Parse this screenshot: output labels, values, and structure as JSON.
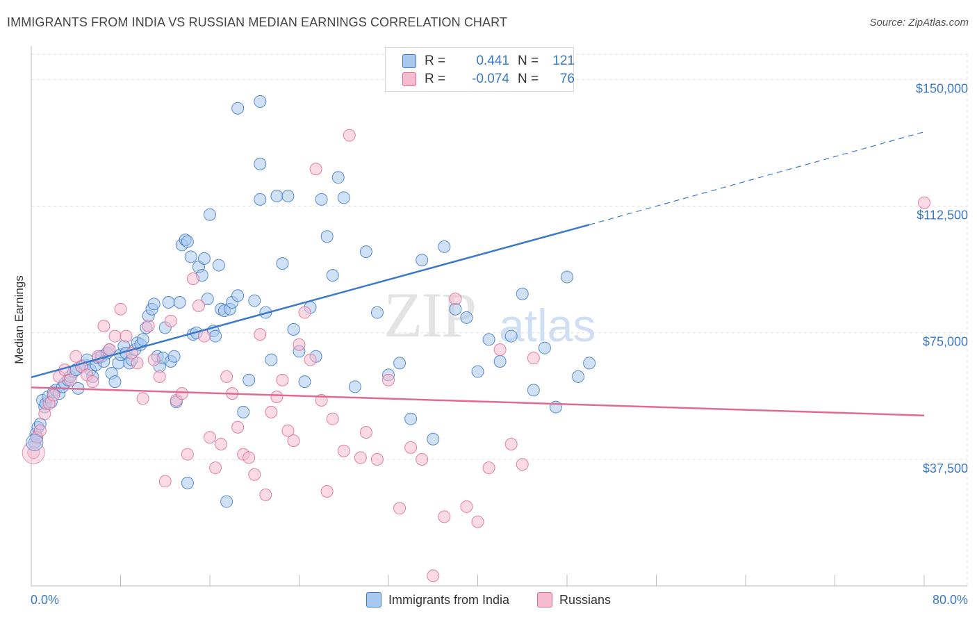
{
  "header": {
    "title": "IMMIGRANTS FROM INDIA VS RUSSIAN MEDIAN EARNINGS CORRELATION CHART",
    "source": "Source: ZipAtlas.com"
  },
  "legend": {
    "india": {
      "r_label": "R =",
      "r_value": "0.441",
      "n_label": "N =",
      "n_value": "121"
    },
    "russians": {
      "r_label": "R =",
      "r_value": "-0.074",
      "n_label": "N =",
      "n_value": "76"
    }
  },
  "bottom_legend": {
    "india": "Immigrants from India",
    "russians": "Russians"
  },
  "watermark": {
    "zip": "ZIP",
    "atlas": "atlas"
  },
  "colors": {
    "india": "#3a78c9",
    "india_fill": "#a9c8ee",
    "russians": "#e06a94",
    "russians_fill": "#f5bcd0",
    "tick": "#3a78c9",
    "grid": "#dddddd"
  },
  "chart_data": {
    "type": "scatter",
    "title": "IMMIGRANTS FROM INDIA VS RUSSIAN MEDIAN EARNINGS CORRELATION CHART",
    "xlabel": "",
    "ylabel": "Median Earnings",
    "xlim": [
      0,
      80
    ],
    "ylim": [
      0,
      157500
    ],
    "x_tick_labels": [
      "0.0%",
      "80.0%"
    ],
    "y_ticks": [
      37500,
      75000,
      112500,
      150000
    ],
    "y_tick_labels": [
      "$37,500",
      "$75,000",
      "$112,500",
      "$150,000"
    ],
    "grid": true,
    "legend_position": "top-center",
    "series": [
      {
        "name": "Immigrants from India",
        "color": "#3a78c9",
        "trend": {
          "x": [
            0,
            50
          ],
          "y": [
            61800,
            107000
          ],
          "dashed_extension_to": [
            80,
            134500
          ]
        },
        "points": [
          [
            0.3,
            42500
          ],
          [
            0.4,
            45000
          ],
          [
            0.5,
            44000
          ],
          [
            0.6,
            47000
          ],
          [
            0.8,
            48000
          ],
          [
            1.0,
            55000
          ],
          [
            1.2,
            53000
          ],
          [
            1.3,
            54000
          ],
          [
            1.5,
            56000
          ],
          [
            1.8,
            54500
          ],
          [
            2.0,
            57500
          ],
          [
            2.2,
            58000
          ],
          [
            2.5,
            57000
          ],
          [
            2.8,
            59000
          ],
          [
            3.0,
            60000
          ],
          [
            3.3,
            61000
          ],
          [
            3.5,
            62000
          ],
          [
            3.8,
            63500
          ],
          [
            4.0,
            64000
          ],
          [
            4.2,
            58500
          ],
          [
            4.5,
            65000
          ],
          [
            4.8,
            65500
          ],
          [
            5.0,
            67000
          ],
          [
            5.3,
            64000
          ],
          [
            5.5,
            62000
          ],
          [
            5.8,
            65500
          ],
          [
            6.0,
            67500
          ],
          [
            6.3,
            68000
          ],
          [
            6.5,
            66500
          ],
          [
            6.8,
            69000
          ],
          [
            7.0,
            70000
          ],
          [
            7.2,
            63000
          ],
          [
            7.5,
            60500
          ],
          [
            7.8,
            66000
          ],
          [
            8.0,
            68500
          ],
          [
            8.3,
            71000
          ],
          [
            8.5,
            69000
          ],
          [
            8.8,
            66000
          ],
          [
            9.0,
            67000
          ],
          [
            9.3,
            70000
          ],
          [
            9.5,
            72000
          ],
          [
            9.8,
            71500
          ],
          [
            10.0,
            73000
          ],
          [
            10.3,
            76500
          ],
          [
            10.5,
            80000
          ],
          [
            10.8,
            82000
          ],
          [
            11.0,
            83500
          ],
          [
            11.3,
            68000
          ],
          [
            11.5,
            65000
          ],
          [
            11.8,
            67500
          ],
          [
            12.0,
            76500
          ],
          [
            12.3,
            84000
          ],
          [
            12.5,
            66500
          ],
          [
            12.8,
            68000
          ],
          [
            13.0,
            54500
          ],
          [
            13.3,
            84000
          ],
          [
            13.5,
            101000
          ],
          [
            13.8,
            102500
          ],
          [
            14.0,
            102000
          ],
          [
            14.3,
            97500
          ],
          [
            14.5,
            74500
          ],
          [
            14.8,
            75000
          ],
          [
            15.0,
            94500
          ],
          [
            15.3,
            92000
          ],
          [
            15.5,
            97000
          ],
          [
            15.8,
            85000
          ],
          [
            16.0,
            110000
          ],
          [
            16.3,
            75500
          ],
          [
            16.5,
            74000
          ],
          [
            16.8,
            95000
          ],
          [
            17.0,
            82000
          ],
          [
            17.3,
            81500
          ],
          [
            17.5,
            25000
          ],
          [
            17.8,
            82000
          ],
          [
            18.0,
            84000
          ],
          [
            18.5,
            86000
          ],
          [
            19.0,
            51500
          ],
          [
            19.5,
            61000
          ],
          [
            20.0,
            84500
          ],
          [
            20.5,
            114500
          ],
          [
            21.0,
            81000
          ],
          [
            21.5,
            67000
          ],
          [
            22.0,
            115500
          ],
          [
            22.5,
            95500
          ],
          [
            23.0,
            115500
          ],
          [
            23.5,
            76000
          ],
          [
            24.0,
            69500
          ],
          [
            24.5,
            60500
          ],
          [
            25.0,
            82500
          ],
          [
            25.5,
            68000
          ],
          [
            26.0,
            114500
          ],
          [
            26.5,
            103500
          ],
          [
            27.0,
            92000
          ],
          [
            27.5,
            121000
          ],
          [
            28.0,
            115000
          ],
          [
            29.0,
            59000
          ],
          [
            30.0,
            99000
          ],
          [
            31.0,
            81000
          ],
          [
            32.0,
            62500
          ],
          [
            33.0,
            66000
          ],
          [
            34.0,
            49500
          ],
          [
            35.0,
            96500
          ],
          [
            36.0,
            43500
          ],
          [
            37.0,
            100500
          ],
          [
            38.0,
            82000
          ],
          [
            39.0,
            79500
          ],
          [
            40.0,
            63500
          ],
          [
            41.0,
            73000
          ],
          [
            42.0,
            66500
          ],
          [
            43.0,
            74000
          ],
          [
            44.0,
            86500
          ],
          [
            45.0,
            58000
          ],
          [
            46.0,
            70500
          ],
          [
            47.0,
            53000
          ],
          [
            48.0,
            91500
          ],
          [
            49.0,
            62000
          ],
          [
            50.0,
            66000
          ],
          [
            14.0,
            30500
          ],
          [
            18.5,
            141500
          ],
          [
            20.5,
            143500
          ],
          [
            20.5,
            125000
          ]
        ]
      },
      {
        "name": "Russians",
        "color": "#e06a94",
        "trend": {
          "x": [
            0,
            80
          ],
          "y": [
            58800,
            50500
          ]
        },
        "points": [
          [
            0.2,
            39500
          ],
          [
            0.5,
            44000
          ],
          [
            0.8,
            46000
          ],
          [
            1.2,
            51000
          ],
          [
            1.6,
            54000
          ],
          [
            2.0,
            56500
          ],
          [
            2.5,
            62000
          ],
          [
            3.0,
            64000
          ],
          [
            3.5,
            61000
          ],
          [
            4.0,
            68000
          ],
          [
            4.5,
            65000
          ],
          [
            5.0,
            62500
          ],
          [
            5.5,
            60500
          ],
          [
            6.0,
            68000
          ],
          [
            6.5,
            77000
          ],
          [
            7.0,
            70000
          ],
          [
            7.5,
            74000
          ],
          [
            8.0,
            82000
          ],
          [
            8.5,
            74000
          ],
          [
            9.0,
            69000
          ],
          [
            9.5,
            66000
          ],
          [
            10.0,
            55500
          ],
          [
            10.5,
            77000
          ],
          [
            11.0,
            67000
          ],
          [
            11.5,
            62000
          ],
          [
            12.0,
            31000
          ],
          [
            12.5,
            78500
          ],
          [
            13.0,
            55000
          ],
          [
            13.5,
            57000
          ],
          [
            14.0,
            39000
          ],
          [
            14.5,
            91000
          ],
          [
            15.0,
            83000
          ],
          [
            15.5,
            74000
          ],
          [
            16.0,
            44000
          ],
          [
            16.5,
            35000
          ],
          [
            17.0,
            42000
          ],
          [
            17.5,
            62000
          ],
          [
            18.0,
            57000
          ],
          [
            18.5,
            47000
          ],
          [
            19.0,
            39000
          ],
          [
            19.5,
            38000
          ],
          [
            20.0,
            33000
          ],
          [
            20.5,
            74500
          ],
          [
            21.0,
            27000
          ],
          [
            21.5,
            51500
          ],
          [
            22.0,
            56000
          ],
          [
            22.5,
            61000
          ],
          [
            23.0,
            46000
          ],
          [
            23.5,
            43000
          ],
          [
            24.0,
            71500
          ],
          [
            24.5,
            81000
          ],
          [
            25.0,
            67000
          ],
          [
            25.5,
            123500
          ],
          [
            26.0,
            55000
          ],
          [
            26.5,
            28000
          ],
          [
            27.0,
            49500
          ],
          [
            28.0,
            40000
          ],
          [
            28.5,
            133500
          ],
          [
            29.5,
            38000
          ],
          [
            30.0,
            45500
          ],
          [
            31.0,
            37500
          ],
          [
            32.0,
            61000
          ],
          [
            33.0,
            23000
          ],
          [
            34.0,
            41000
          ],
          [
            35.0,
            37500
          ],
          [
            36.0,
            3000
          ],
          [
            37.0,
            20500
          ],
          [
            38.0,
            85000
          ],
          [
            39.0,
            23500
          ],
          [
            40.0,
            19000
          ],
          [
            41.0,
            35000
          ],
          [
            42.0,
            70000
          ],
          [
            43.0,
            42000
          ],
          [
            44.0,
            36000
          ],
          [
            45.0,
            67500
          ],
          [
            80.0,
            113500
          ]
        ]
      }
    ]
  }
}
